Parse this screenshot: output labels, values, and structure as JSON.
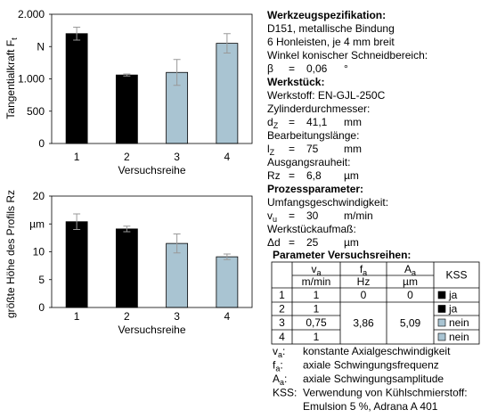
{
  "chart_data": [
    {
      "type": "bar",
      "ylabel": "Tangentialkraft F",
      "ylabel_sub": "t",
      "xlabel": "Versuchsreihe",
      "categories": [
        "1",
        "2",
        "3",
        "4"
      ],
      "values": [
        1700,
        1060,
        1100,
        1550
      ],
      "errors": [
        100,
        15,
        200,
        150
      ],
      "colors": [
        "#000000",
        "#000000",
        "#a9c4d2",
        "#a9c4d2"
      ],
      "error_color": "#999999",
      "ylim": [
        0,
        2000
      ],
      "yticks": [
        0,
        500,
        {
          "value": 1000,
          "label": "1.000"
        },
        {
          "value": 1500,
          "label": "N"
        },
        {
          "value": 2000,
          "label": "2.000"
        }
      ]
    },
    {
      "type": "bar",
      "ylabel": "größte Höhe des Profils Rz",
      "xlabel": "Versuchsreihe",
      "categories": [
        "1",
        "2",
        "3",
        "4"
      ],
      "values": [
        15.4,
        14.1,
        11.5,
        9.1
      ],
      "errors": [
        1.4,
        0.5,
        1.7,
        0.5
      ],
      "colors": [
        "#000000",
        "#000000",
        "#a9c4d2",
        "#a9c4d2"
      ],
      "error_color": "#999999",
      "ylim": [
        0,
        20
      ],
      "yticks": [
        0,
        5,
        10,
        {
          "value": 15,
          "label": "µm"
        },
        20
      ]
    }
  ],
  "equals": "=",
  "colon": ":",
  "panel": [
    {
      "text": "Werkzeugspezifikation:",
      "bold": true
    },
    {
      "text": "D151, metallische Bindung"
    },
    {
      "text": "6 Honleisten, je 4 mm breit"
    },
    {
      "text": "Winkel konischer Schneidbereich:"
    },
    {
      "formula": {
        "symbol": "β",
        "value": "0,06",
        "unit": "°"
      }
    },
    {
      "text": "Werkstück:",
      "bold": true
    },
    {
      "text": "Werkstoff: EN-GJL-250C"
    },
    {
      "text": "Zylinderdurchmesser:"
    },
    {
      "formula": {
        "symbol": "d",
        "sub": "Z",
        "value": "41,1",
        "unit": "mm"
      }
    },
    {
      "text": "Bearbeitungslänge:"
    },
    {
      "formula": {
        "symbol": "l",
        "sub": "Z",
        "value": "75",
        "unit": "mm"
      }
    },
    {
      "text": "Ausgangsrauheit:"
    },
    {
      "formula": {
        "symbol": "Rz",
        "value": "6,8",
        "unit": "µm"
      }
    },
    {
      "text": "Prozessparameter:",
      "bold": true
    },
    {
      "text": "Umfangsgeschwindigkeit:"
    },
    {
      "formula": {
        "symbol": "v",
        "sub": "u",
        "value": "30",
        "unit": "m/min"
      }
    },
    {
      "text": "Werkstückaufmaß:"
    },
    {
      "formula": {
        "symbol": "Δd",
        "value": "25",
        "unit": "µm"
      }
    }
  ],
  "table": {
    "title": "Parameter Versuchsreihen:",
    "header": [
      {
        "symbol": "v",
        "sub": "a",
        "unit": "m/min"
      },
      {
        "symbol": "f",
        "sub": "a",
        "unit": "Hz"
      },
      {
        "symbol": "A",
        "sub": "a",
        "unit": "µm"
      },
      {
        "symbol": "KSS"
      }
    ],
    "rows": [
      {
        "id": "1",
        "va": "1",
        "fa": "0",
        "Aa": "0",
        "kss": "ja",
        "kss_color": "#000000"
      },
      {
        "id": "2",
        "va": "1",
        "kss": "ja",
        "kss_color": "#000000"
      },
      {
        "id": "3",
        "va": "0,75",
        "kss": "nein",
        "kss_color": "#a9c4d2"
      },
      {
        "id": "4",
        "va": "1",
        "kss": "nein",
        "kss_color": "#a9c4d2"
      }
    ],
    "merged_fa": "3,86",
    "merged_Aa": "5,09"
  },
  "notes": [
    {
      "symbol": "v",
      "sub": "a",
      "text": "konstante Axialgeschwindigkeit"
    },
    {
      "symbol": "f",
      "sub": "a",
      "text": "axiale Schwingungsfrequenz"
    },
    {
      "symbol": "A",
      "sub": "a",
      "text": "axiale Schwingungsamplitude"
    },
    {
      "symbol": "KSS",
      "text": "Verwendung von Kühlschmierstoff:",
      "cont": "Emulsion 5 %, Adrana A 401"
    }
  ]
}
